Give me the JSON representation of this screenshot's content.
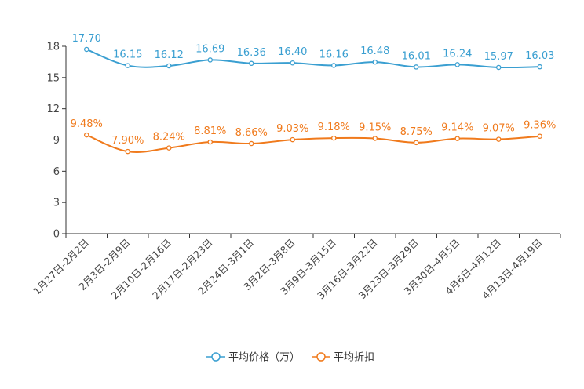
{
  "chart_data": {
    "type": "line",
    "categories": [
      "1月27日-2月2日",
      "2月3日-2月9日",
      "2月10日-2月16日",
      "2月17日-2月23日",
      "2月24日-3月1日",
      "3月2日-3月8日",
      "3月9日-3月15日",
      "3月16日-3月22日",
      "3月23日-3月29日",
      "3月30日-4月5日",
      "4月6日-4月12日",
      "4月13日-4月19日"
    ],
    "ylim": [
      0,
      18
    ],
    "yticks": [
      0,
      3,
      6,
      9,
      12,
      15,
      18
    ],
    "series": [
      {
        "name": "平均价格（万）",
        "color": "#3a9fd1",
        "values": [
          17.7,
          16.15,
          16.12,
          16.69,
          16.36,
          16.4,
          16.16,
          16.48,
          16.01,
          16.24,
          15.97,
          16.03
        ],
        "labels": [
          "17.70",
          "16.15",
          "16.12",
          "16.69",
          "16.36",
          "16.40",
          "16.16",
          "16.48",
          "16.01",
          "16.24",
          "15.97",
          "16.03"
        ]
      },
      {
        "name": "平均折扣",
        "color": "#f07a1c",
        "values": [
          9.48,
          7.9,
          8.24,
          8.81,
          8.66,
          9.03,
          9.18,
          9.15,
          8.75,
          9.14,
          9.07,
          9.36
        ],
        "labels": [
          "9.48%",
          "7.90%",
          "8.24%",
          "8.81%",
          "8.66%",
          "9.03%",
          "9.18%",
          "9.15%",
          "8.75%",
          "9.14%",
          "9.07%",
          "9.36%"
        ]
      }
    ],
    "legend_position": "bottom-center"
  }
}
